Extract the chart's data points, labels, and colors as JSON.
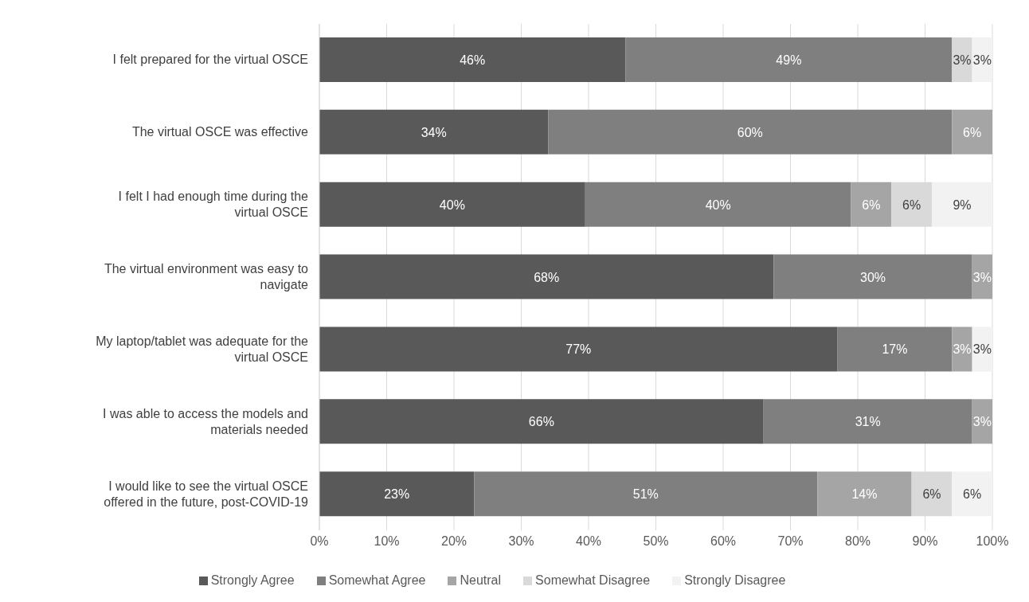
{
  "chart_data": {
    "type": "bar",
    "orientation": "horizontal",
    "stacked": true,
    "categories": [
      "I felt prepared for the virtual OSCE",
      "The virtual OSCE was effective",
      "I felt I had enough time during the virtual OSCE",
      "The virtual environment was easy to navigate",
      "My laptop/tablet was adequate for the virtual OSCE",
      "I was able to access the models and materials needed",
      "I would like to see the virtual OSCE offered in the future, post-COVID-19"
    ],
    "series": [
      {
        "name": "Strongly Agree",
        "color": "#595959",
        "values": [
          45.5,
          34,
          39.5,
          67.5,
          77,
          66,
          23
        ],
        "value_labels": [
          "46%",
          "34%",
          "40%",
          "68%",
          "77%",
          "66%",
          "23%"
        ]
      },
      {
        "name": "Somewhat Agree",
        "color": "#7f7f7f",
        "values": [
          48.5,
          60,
          39.5,
          29.5,
          17,
          31,
          51
        ],
        "value_labels": [
          "49%",
          "60%",
          "40%",
          "30%",
          "17%",
          "31%",
          "51%"
        ]
      },
      {
        "name": "Neutral",
        "color": "#a5a5a5",
        "values": [
          0,
          6,
          6,
          3,
          3,
          3,
          14
        ],
        "value_labels": [
          null,
          "6%",
          "6%",
          "3%",
          "3%",
          "3%",
          "14%"
        ]
      },
      {
        "name": "Somewhat Disagree",
        "color": "#d9d9d9",
        "values": [
          3,
          0,
          6,
          0,
          0,
          0,
          6
        ],
        "value_labels": [
          "3%",
          null,
          "6%",
          null,
          null,
          null,
          "6%"
        ]
      },
      {
        "name": "Strongly Disagree",
        "color": "#f2f2f2",
        "values": [
          3,
          0,
          9,
          0,
          3,
          0,
          6
        ],
        "value_labels": [
          "3%",
          null,
          "9%",
          null,
          "3%",
          null,
          "6%"
        ]
      }
    ],
    "xlim": [
      0,
      100
    ],
    "xticks": [
      {
        "value": 0,
        "label": "0%"
      },
      {
        "value": 10,
        "label": "10%"
      },
      {
        "value": 20,
        "label": "20%"
      },
      {
        "value": 30,
        "label": "30%"
      },
      {
        "value": 40,
        "label": "40%"
      },
      {
        "value": 50,
        "label": "50%"
      },
      {
        "value": 60,
        "label": "60%"
      },
      {
        "value": 70,
        "label": "70%"
      },
      {
        "value": 80,
        "label": "80%"
      },
      {
        "value": 90,
        "label": "90%"
      },
      {
        "value": 100,
        "label": "100%"
      }
    ],
    "grid": "x",
    "legend": "bottom"
  }
}
